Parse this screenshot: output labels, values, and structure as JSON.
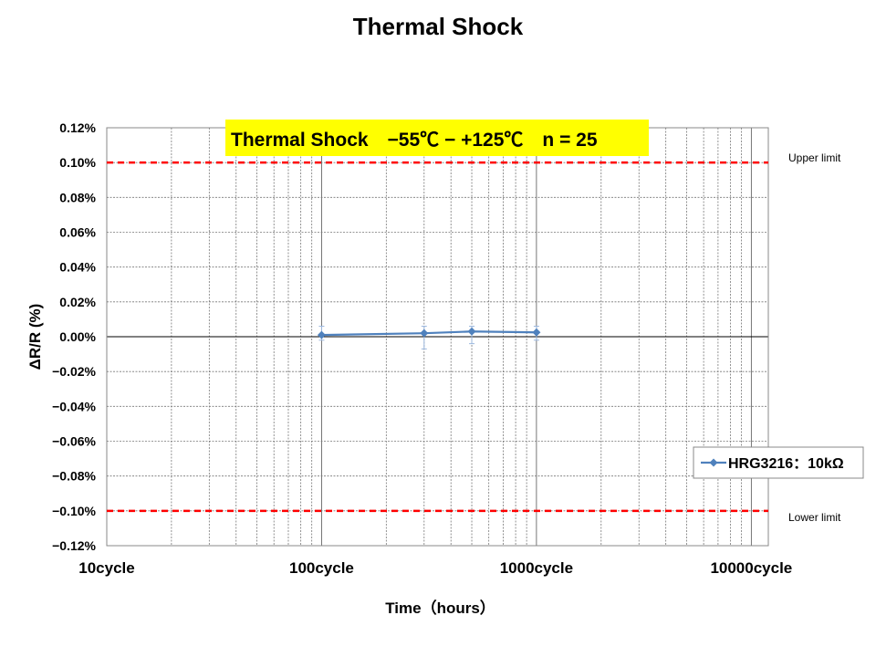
{
  "page": {
    "title": "Thermal Shock"
  },
  "chart_data": {
    "type": "line",
    "title": "Thermal Shock",
    "annotation": "Thermal Shock　−55℃ − +125℃　n = 25",
    "annotation_color": "#ffff00",
    "xlabel": "Time（hours）",
    "ylabel": "ΔR/R (%)",
    "x_scale": "log",
    "xlim": [
      10,
      12000
    ],
    "x_ticks": [
      {
        "value": 10,
        "label": "10cycle"
      },
      {
        "value": 100,
        "label": "100cycle"
      },
      {
        "value": 1000,
        "label": "1000cycle"
      },
      {
        "value": 10000,
        "label": "10000cycle"
      }
    ],
    "ylim": [
      -0.12,
      0.12
    ],
    "y_ticks": [
      {
        "value": 0.12,
        "label": "0.12%"
      },
      {
        "value": 0.1,
        "label": "0.10%"
      },
      {
        "value": 0.08,
        "label": "0.08%"
      },
      {
        "value": 0.06,
        "label": "0.06%"
      },
      {
        "value": 0.04,
        "label": "0.04%"
      },
      {
        "value": 0.02,
        "label": "0.02%"
      },
      {
        "value": 0.0,
        "label": "0.00%"
      },
      {
        "value": -0.02,
        "label": "−0.02%"
      },
      {
        "value": -0.04,
        "label": "−0.04%"
      },
      {
        "value": -0.06,
        "label": "−0.06%"
      },
      {
        "value": -0.08,
        "label": "−0.08%"
      },
      {
        "value": -0.1,
        "label": "−0.10%"
      },
      {
        "value": -0.12,
        "label": "−0.12%"
      }
    ],
    "grid": true,
    "limits": [
      {
        "label": "Upper limit",
        "value": 0.1,
        "color": "#ff0000"
      },
      {
        "label": "Lower limit",
        "value": -0.1,
        "color": "#ff0000"
      }
    ],
    "series": [
      {
        "name": "HRG3216：10kΩ",
        "color": "#4f81bd",
        "points": [
          {
            "x": 100,
            "y": 0.001,
            "ymin": -0.002,
            "ymax": 0.006
          },
          {
            "x": 300,
            "y": 0.002,
            "ymin": -0.007,
            "ymax": 0.006
          },
          {
            "x": 500,
            "y": 0.003,
            "ymin": -0.004,
            "ymax": 0.006
          },
          {
            "x": 1000,
            "y": 0.0025,
            "ymin": -0.002,
            "ymax": 0.006
          }
        ]
      }
    ],
    "legend_position": "right"
  }
}
